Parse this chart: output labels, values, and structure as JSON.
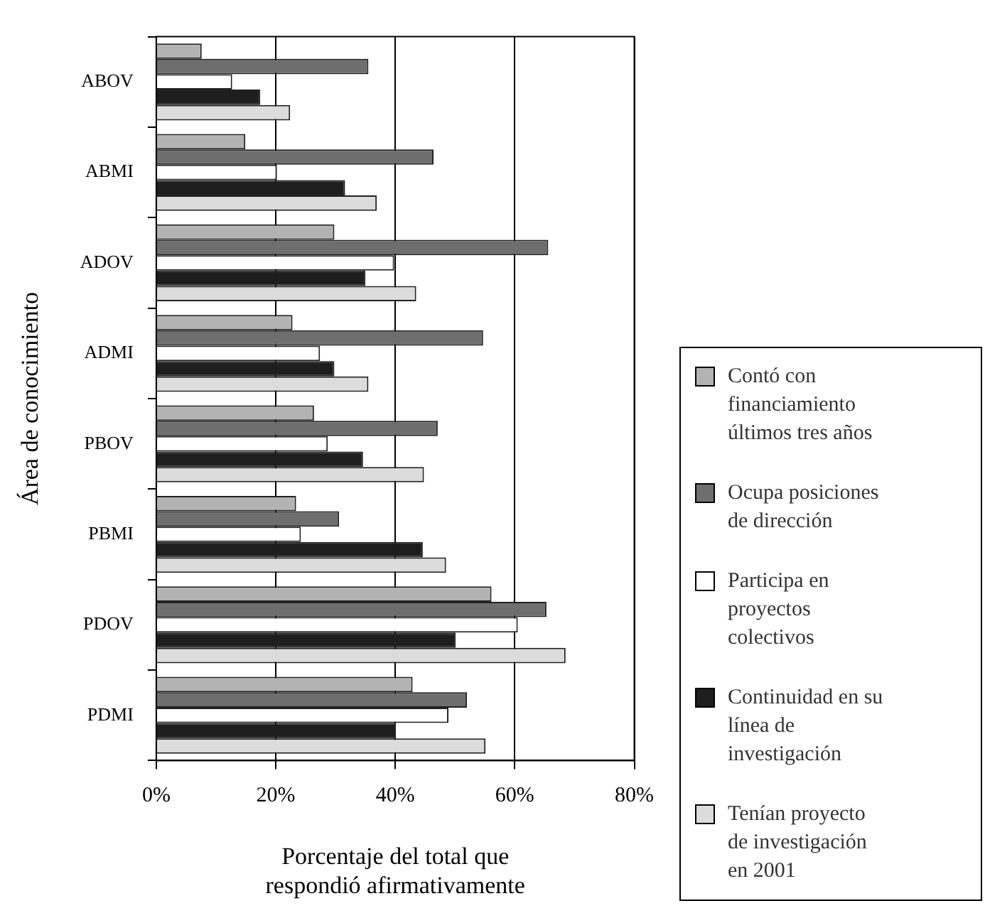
{
  "chart_data": {
    "type": "bar",
    "orientation": "horizontal",
    "ylabel": "Área de conocimiento",
    "xlabel": "Porcentaje del total que respondió afirmativamente",
    "categories": [
      "ABOV",
      "ABMI",
      "ADOV",
      "ADMI",
      "PBOV",
      "PBMI",
      "PDOV",
      "PDMI"
    ],
    "series": [
      {
        "name": "Contó con financiamiento últimos tres años",
        "color": "#b3b3b3",
        "values": [
          7.6,
          14.9,
          29.8,
          22.8,
          26.4,
          23.4,
          56.1,
          42.9
        ]
      },
      {
        "name": "Ocupa posiciones de dirección",
        "color": "#6e6e6e",
        "values": [
          35.5,
          46.4,
          65.6,
          54.7,
          47.1,
          30.6,
          65.3,
          52.0
        ]
      },
      {
        "name": "Participa en proyectos colectivos",
        "color": "#ffffff",
        "values": [
          12.7,
          20.2,
          39.8,
          27.4,
          28.7,
          24.2,
          60.5,
          48.9
        ]
      },
      {
        "name": "Continuidad en su línea de investigación",
        "color": "#1e1e1e",
        "values": [
          17.4,
          31.6,
          35.0,
          29.8,
          34.6,
          44.6,
          50.1,
          40.1
        ]
      },
      {
        "name": "Tenían proyecto de investigación en 2001",
        "color": "#dcdcdc",
        "values": [
          22.4,
          36.9,
          43.5,
          35.5,
          44.8,
          48.5,
          68.5,
          55.1
        ]
      }
    ],
    "xlim": [
      0,
      80
    ],
    "xticks": [
      {
        "value": 0,
        "label": "0%"
      },
      {
        "value": 20,
        "label": "20%"
      },
      {
        "value": 40,
        "label": "40%"
      },
      {
        "value": 60,
        "label": "60%"
      },
      {
        "value": 80,
        "label": "80%"
      }
    ],
    "grid": "x",
    "legend": "right"
  }
}
